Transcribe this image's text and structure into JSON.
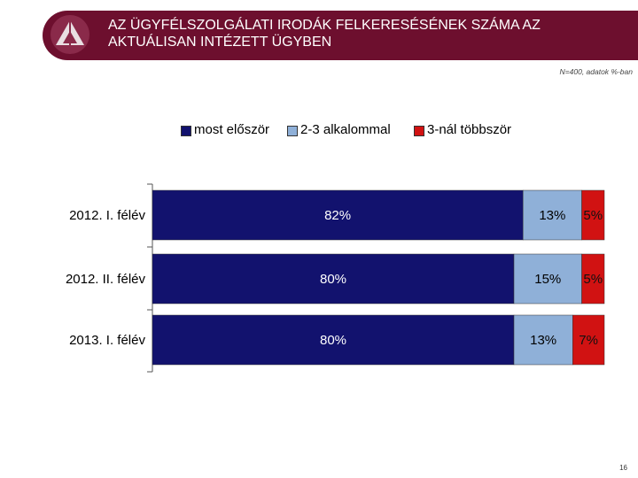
{
  "header": {
    "title": "AZ ÜGYFÉLSZOLGÁLATI IRODÁK FELKERESÉSÉNEK SZÁMA AZ\nAKTUÁLISAN INTÉZETT ÜGYBEN",
    "note": "N=400, adatok %-ban",
    "page_number": "16"
  },
  "colors": {
    "header_bg": "#6d0f2e",
    "series": [
      "#12126e",
      "#8fb0d8",
      "#d11212"
    ]
  },
  "chart_data": {
    "type": "bar",
    "orientation": "horizontal",
    "stacked": true,
    "categories": [
      "2012. I. félév",
      "2012. II. félév",
      "2013. I. félév"
    ],
    "series": [
      {
        "name": "most először",
        "values": [
          82,
          80,
          80
        ],
        "labels": [
          "82%",
          "80%",
          "80%"
        ]
      },
      {
        "name": "2-3 alkalommal",
        "values": [
          13,
          15,
          13
        ],
        "labels": [
          "13%",
          "15%",
          "13%"
        ]
      },
      {
        "name": "3-nál többször",
        "values": [
          5,
          5,
          7
        ],
        "labels": [
          "5%",
          "5%",
          "7%"
        ]
      }
    ],
    "xlim": [
      0,
      100
    ],
    "legend_position": "top",
    "grid": false
  }
}
